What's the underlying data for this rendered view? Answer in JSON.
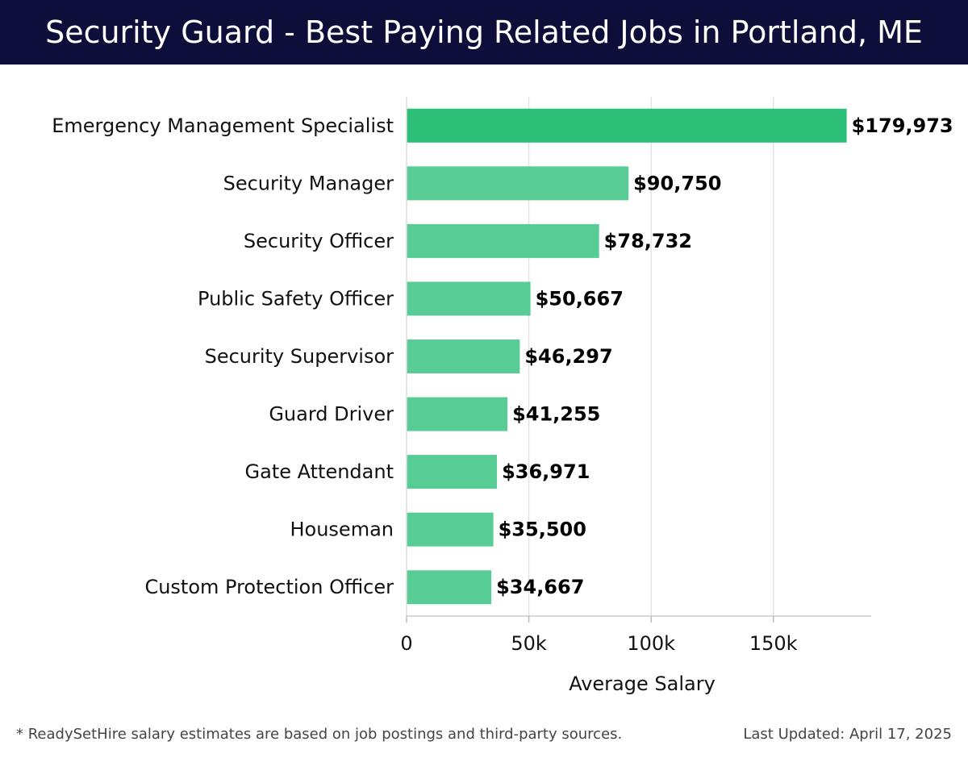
{
  "header": {
    "title": "Security Guard - Best Paying Related Jobs in Portland, ME"
  },
  "chart_data": {
    "type": "bar",
    "orientation": "horizontal",
    "title": "Security Guard - Best Paying Related Jobs in Portland, ME",
    "xlabel": "Average Salary",
    "ylabel": "",
    "xlim": [
      0,
      190000
    ],
    "xticks": [
      0,
      50000,
      100000,
      150000
    ],
    "xtick_labels": [
      "0",
      "50k",
      "100k",
      "150k"
    ],
    "grid": true,
    "categories": [
      "Emergency Management Specialist",
      "Security Manager",
      "Security Officer",
      "Public Safety Officer",
      "Security Supervisor",
      "Guard Driver",
      "Gate Attendant",
      "Houseman",
      "Custom Protection Officer"
    ],
    "values": [
      179973,
      90750,
      78732,
      50667,
      46297,
      41255,
      36971,
      35500,
      34667
    ],
    "value_labels": [
      "$179,973",
      "$90,750",
      "$78,732",
      "$50,667",
      "$46,297",
      "$41,255",
      "$36,971",
      "$35,500",
      "$34,667"
    ],
    "highlight_color": "#2cbf78",
    "bar_color": "#57cc95"
  },
  "footer": {
    "note": "* ReadySetHire salary estimates are based on job postings and third-party sources.",
    "updated": "Last Updated: April 17, 2025"
  }
}
